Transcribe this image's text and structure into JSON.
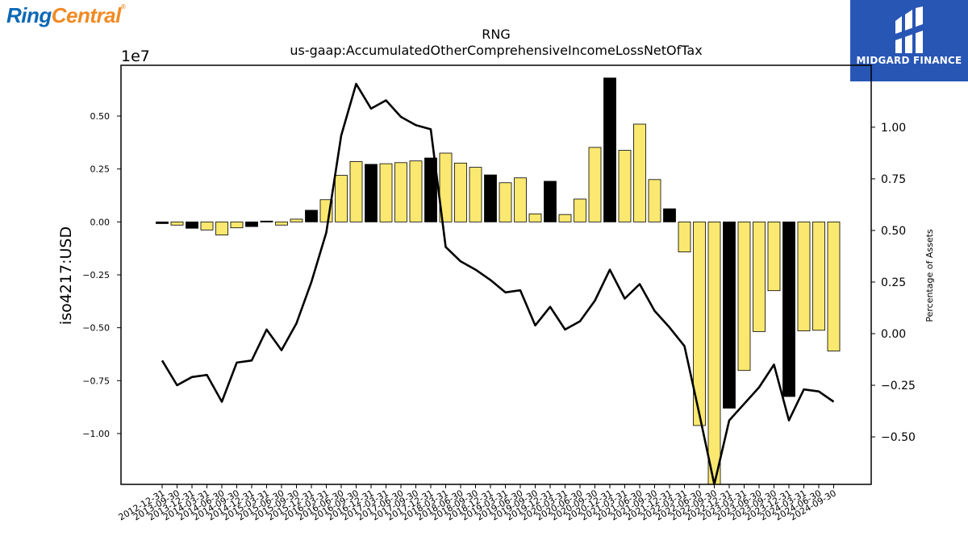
{
  "brand": {
    "ring": "Ring",
    "central": "Central",
    "reg": "®"
  },
  "watermark": {
    "name": "MIDGARD FINANCE",
    "color": "#2856b5"
  },
  "chart_data": {
    "type": "bar",
    "title": "RNG",
    "subtitle": "us-gaap:AccumulatedOtherComprehensiveIncomeLossNetOfTax",
    "ylabel": "iso4217:USD",
    "y2label": "Percentage of Assets",
    "y_multiplier": "1e7",
    "ylim": [
      -12400000,
      7400000
    ],
    "y2lim": [
      -0.73,
      1.3
    ],
    "yticks": [
      "0.50",
      "0.25",
      "0.00",
      "−0.25",
      "−0.50",
      "−0.75",
      "−1.00"
    ],
    "yticks_values": [
      5000000,
      2500000,
      0,
      -2500000,
      -5000000,
      -7500000,
      -10000000
    ],
    "y2ticks": [
      "1.00",
      "0.75",
      "0.50",
      "0.25",
      "0.00",
      "−0.25",
      "−0.50"
    ],
    "y2ticks_values": [
      1.0,
      0.75,
      0.5,
      0.25,
      0.0,
      -0.25,
      -0.5
    ],
    "bar_colors": {
      "increase": "#fbe870",
      "decrease": "#000000"
    },
    "categories": [
      "2012-12-31",
      "2013-09-30",
      "2013-12-31",
      "2014-03-31",
      "2014-06-30",
      "2014-09-30",
      "2014-12-31",
      "2015-03-31",
      "2015-06-30",
      "2015-09-30",
      "2015-12-31",
      "2016-03-31",
      "2016-06-30",
      "2016-09-30",
      "2016-12-31",
      "2017-03-31",
      "2017-06-30",
      "2017-09-30",
      "2017-12-31",
      "2018-03-31",
      "2018-06-30",
      "2018-09-30",
      "2018-12-31",
      "2019-03-31",
      "2019-06-30",
      "2019-09-30",
      "2019-12-31",
      "2020-03-31",
      "2020-06-30",
      "2020-09-30",
      "2020-12-31",
      "2021-03-31",
      "2021-06-30",
      "2021-09-30",
      "2021-12-31",
      "2022-03-31",
      "2022-06-30",
      "2022-09-30",
      "2022-12-31",
      "2023-03-31",
      "2023-06-30",
      "2023-09-30",
      "2023-12-31",
      "2024-03-31",
      "2024-06-30",
      "2024-09-30"
    ],
    "series": [
      {
        "values": [
          -80000,
          -150000,
          -300000,
          -380000,
          -620000,
          -280000,
          -220000,
          40000,
          -150000,
          130000,
          550000,
          1050000,
          2200000,
          2850000,
          2720000,
          2750000,
          2800000,
          2880000,
          3020000,
          3250000,
          2780000,
          2580000,
          2220000,
          1850000,
          2080000,
          380000,
          1920000,
          350000,
          1080000,
          3520000,
          6800000,
          3380000,
          4620000,
          2000000,
          620000,
          -1420000,
          -9620000,
          -12400000,
          -8800000,
          -7020000,
          -5180000,
          -3250000,
          -8250000,
          -5150000,
          -5120000,
          -6100000
        ],
        "colors": [
          "black",
          "yellow",
          "black",
          "yellow",
          "yellow",
          "yellow",
          "black",
          "black",
          "yellow",
          "yellow",
          "black",
          "yellow",
          "yellow",
          "yellow",
          "black",
          "yellow",
          "yellow",
          "yellow",
          "black",
          "yellow",
          "yellow",
          "yellow",
          "black",
          "yellow",
          "yellow",
          "yellow",
          "black",
          "yellow",
          "yellow",
          "yellow",
          "black",
          "yellow",
          "yellow",
          "yellow",
          "black",
          "yellow",
          "yellow",
          "yellow",
          "black",
          "yellow",
          "yellow",
          "yellow",
          "black",
          "yellow",
          "yellow",
          "yellow"
        ]
      },
      {
        "axis": "right",
        "values": [
          -0.13,
          -0.25,
          -0.21,
          -0.2,
          -0.33,
          -0.14,
          -0.13,
          0.02,
          -0.08,
          0.05,
          0.25,
          0.49,
          0.96,
          1.21,
          1.09,
          1.13,
          1.05,
          1.01,
          0.99,
          0.42,
          0.35,
          0.31,
          0.26,
          0.2,
          0.21,
          0.04,
          0.13,
          0.02,
          0.06,
          0.16,
          0.31,
          0.17,
          0.24,
          0.11,
          0.03,
          -0.06,
          -0.39,
          -0.73,
          -0.42,
          -0.34,
          -0.26,
          -0.15,
          -0.42,
          -0.27,
          -0.28,
          -0.33
        ]
      }
    ]
  }
}
